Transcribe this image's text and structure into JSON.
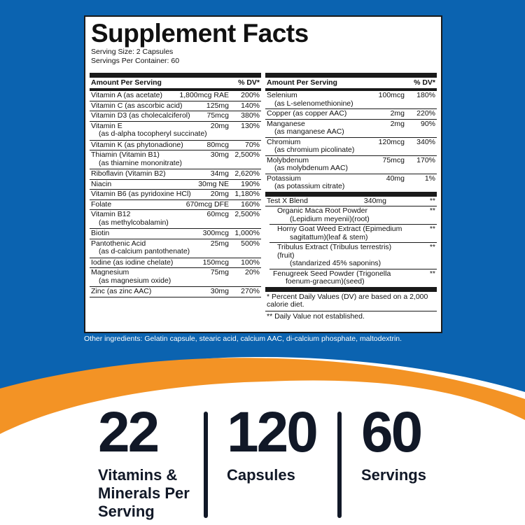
{
  "colors": {
    "blue": "#0b63b0",
    "orange": "#f39325",
    "ink": "#111827"
  },
  "panel": {
    "title": "Supplement Facts",
    "serving_size": "Serving Size: 2 Capsules",
    "servings_per_container": "Servings Per Container: 60",
    "header_amount": "Amount Per Serving",
    "header_dv": "% DV*",
    "left_rows": [
      {
        "name": "Vitamin A (as acetate)",
        "sub": "",
        "amount": "1,800mcg RAE",
        "dv": "200%"
      },
      {
        "name": "Vitamin C (as ascorbic acid)",
        "sub": "",
        "amount": "125mg",
        "dv": "140%"
      },
      {
        "name": "Vitamin D3 (as cholecalciferol)",
        "sub": "",
        "amount": "75mcg",
        "dv": "380%"
      },
      {
        "name": "Vitamin E",
        "sub": "(as d-alpha tocopheryl succinate)",
        "amount": "20mg",
        "dv": "130%"
      },
      {
        "name": "Vitamin K (as phytonadione)",
        "sub": "",
        "amount": "80mcg",
        "dv": "70%"
      },
      {
        "name": "Thiamin (Vitamin B1)",
        "sub": "(as thiamine mononitrate)",
        "amount": "30mg",
        "dv": "2,500%"
      },
      {
        "name": "Riboflavin (Vitamin B2)",
        "sub": "",
        "amount": "34mg",
        "dv": "2,620%"
      },
      {
        "name": "Niacin",
        "sub": "",
        "amount": "30mg NE",
        "dv": "190%"
      },
      {
        "name": "Vitamin B6 (as pyridoxine HCl)",
        "sub": "",
        "amount": "20mg",
        "dv": "1,180%"
      },
      {
        "name": "Folate",
        "sub": "",
        "amount": "670mcg DFE",
        "dv": "160%"
      },
      {
        "name": "Vitamin B12",
        "sub": "(as methylcobalamin)",
        "amount": "60mcg",
        "dv": "2,500%"
      },
      {
        "name": "Biotin",
        "sub": "",
        "amount": "300mcg",
        "dv": "1,000%"
      },
      {
        "name": "Pantothenic Acid",
        "sub": "(as d-calcium pantothenate)",
        "amount": "25mg",
        "dv": "500%"
      },
      {
        "name": "Iodine (as iodine chelate)",
        "sub": "",
        "amount": "150mcg",
        "dv": "100%"
      },
      {
        "name": "Magnesium",
        "sub": "(as magnesium oxide)",
        "amount": "75mg",
        "dv": "20%"
      },
      {
        "name": "Zinc (as zinc AAC)",
        "sub": "",
        "amount": "30mg",
        "dv": "270%"
      }
    ],
    "right_rows": [
      {
        "name": "Selenium",
        "sub": "(as L-selenomethionine)",
        "amount": "100mcg",
        "dv": "180%"
      },
      {
        "name": "Copper (as copper AAC)",
        "sub": "",
        "amount": "2mg",
        "dv": "220%"
      },
      {
        "name": "Manganese",
        "sub": "(as manganese AAC)",
        "amount": "2mg",
        "dv": "90%"
      },
      {
        "name": "Chromium",
        "sub": "(as chromium picolinate)",
        "amount": "120mcg",
        "dv": "340%"
      },
      {
        "name": "Molybdenum",
        "sub": "(as molybdenum AAC)",
        "amount": "75mcg",
        "dv": "170%"
      },
      {
        "name": "Potassium",
        "sub": "(as potassium citrate)",
        "amount": "40mg",
        "dv": "1%"
      }
    ],
    "blend": {
      "name": "Test X Blend",
      "amount": "340mg",
      "dv": "**",
      "items": [
        {
          "name": "Organic Maca Root Powder",
          "sub": "(Lepidium meyenii)(root)",
          "dv": "**"
        },
        {
          "name": "Horny Goat Weed Extract (Epimedium",
          "sub": "sagitattum)(leaf & stem)",
          "dv": "**"
        },
        {
          "name": "Tribulus Extract (Tribulus terrestris)(fruit)",
          "sub": "(standarized 45% saponins)",
          "dv": "**"
        },
        {
          "name": "Fenugreek Seed Powder (Trigonella",
          "sub": "foenum-graecum)(seed)",
          "dv": "**"
        }
      ]
    },
    "footnote1": "* Percent Daily Values (DV) are based on a 2,000 calorie diet.",
    "footnote2": "** Daily Value not established."
  },
  "other_ingredients": "Other ingredients: Gelatin capsule, stearic acid, calcium AAC, di-calcium phosphate, maltodextrin.",
  "stats": [
    {
      "number": "22",
      "label": "Vitamins & Minerals Per Serving"
    },
    {
      "number": "120",
      "label": "Capsules"
    },
    {
      "number": "60",
      "label": "Servings"
    }
  ]
}
